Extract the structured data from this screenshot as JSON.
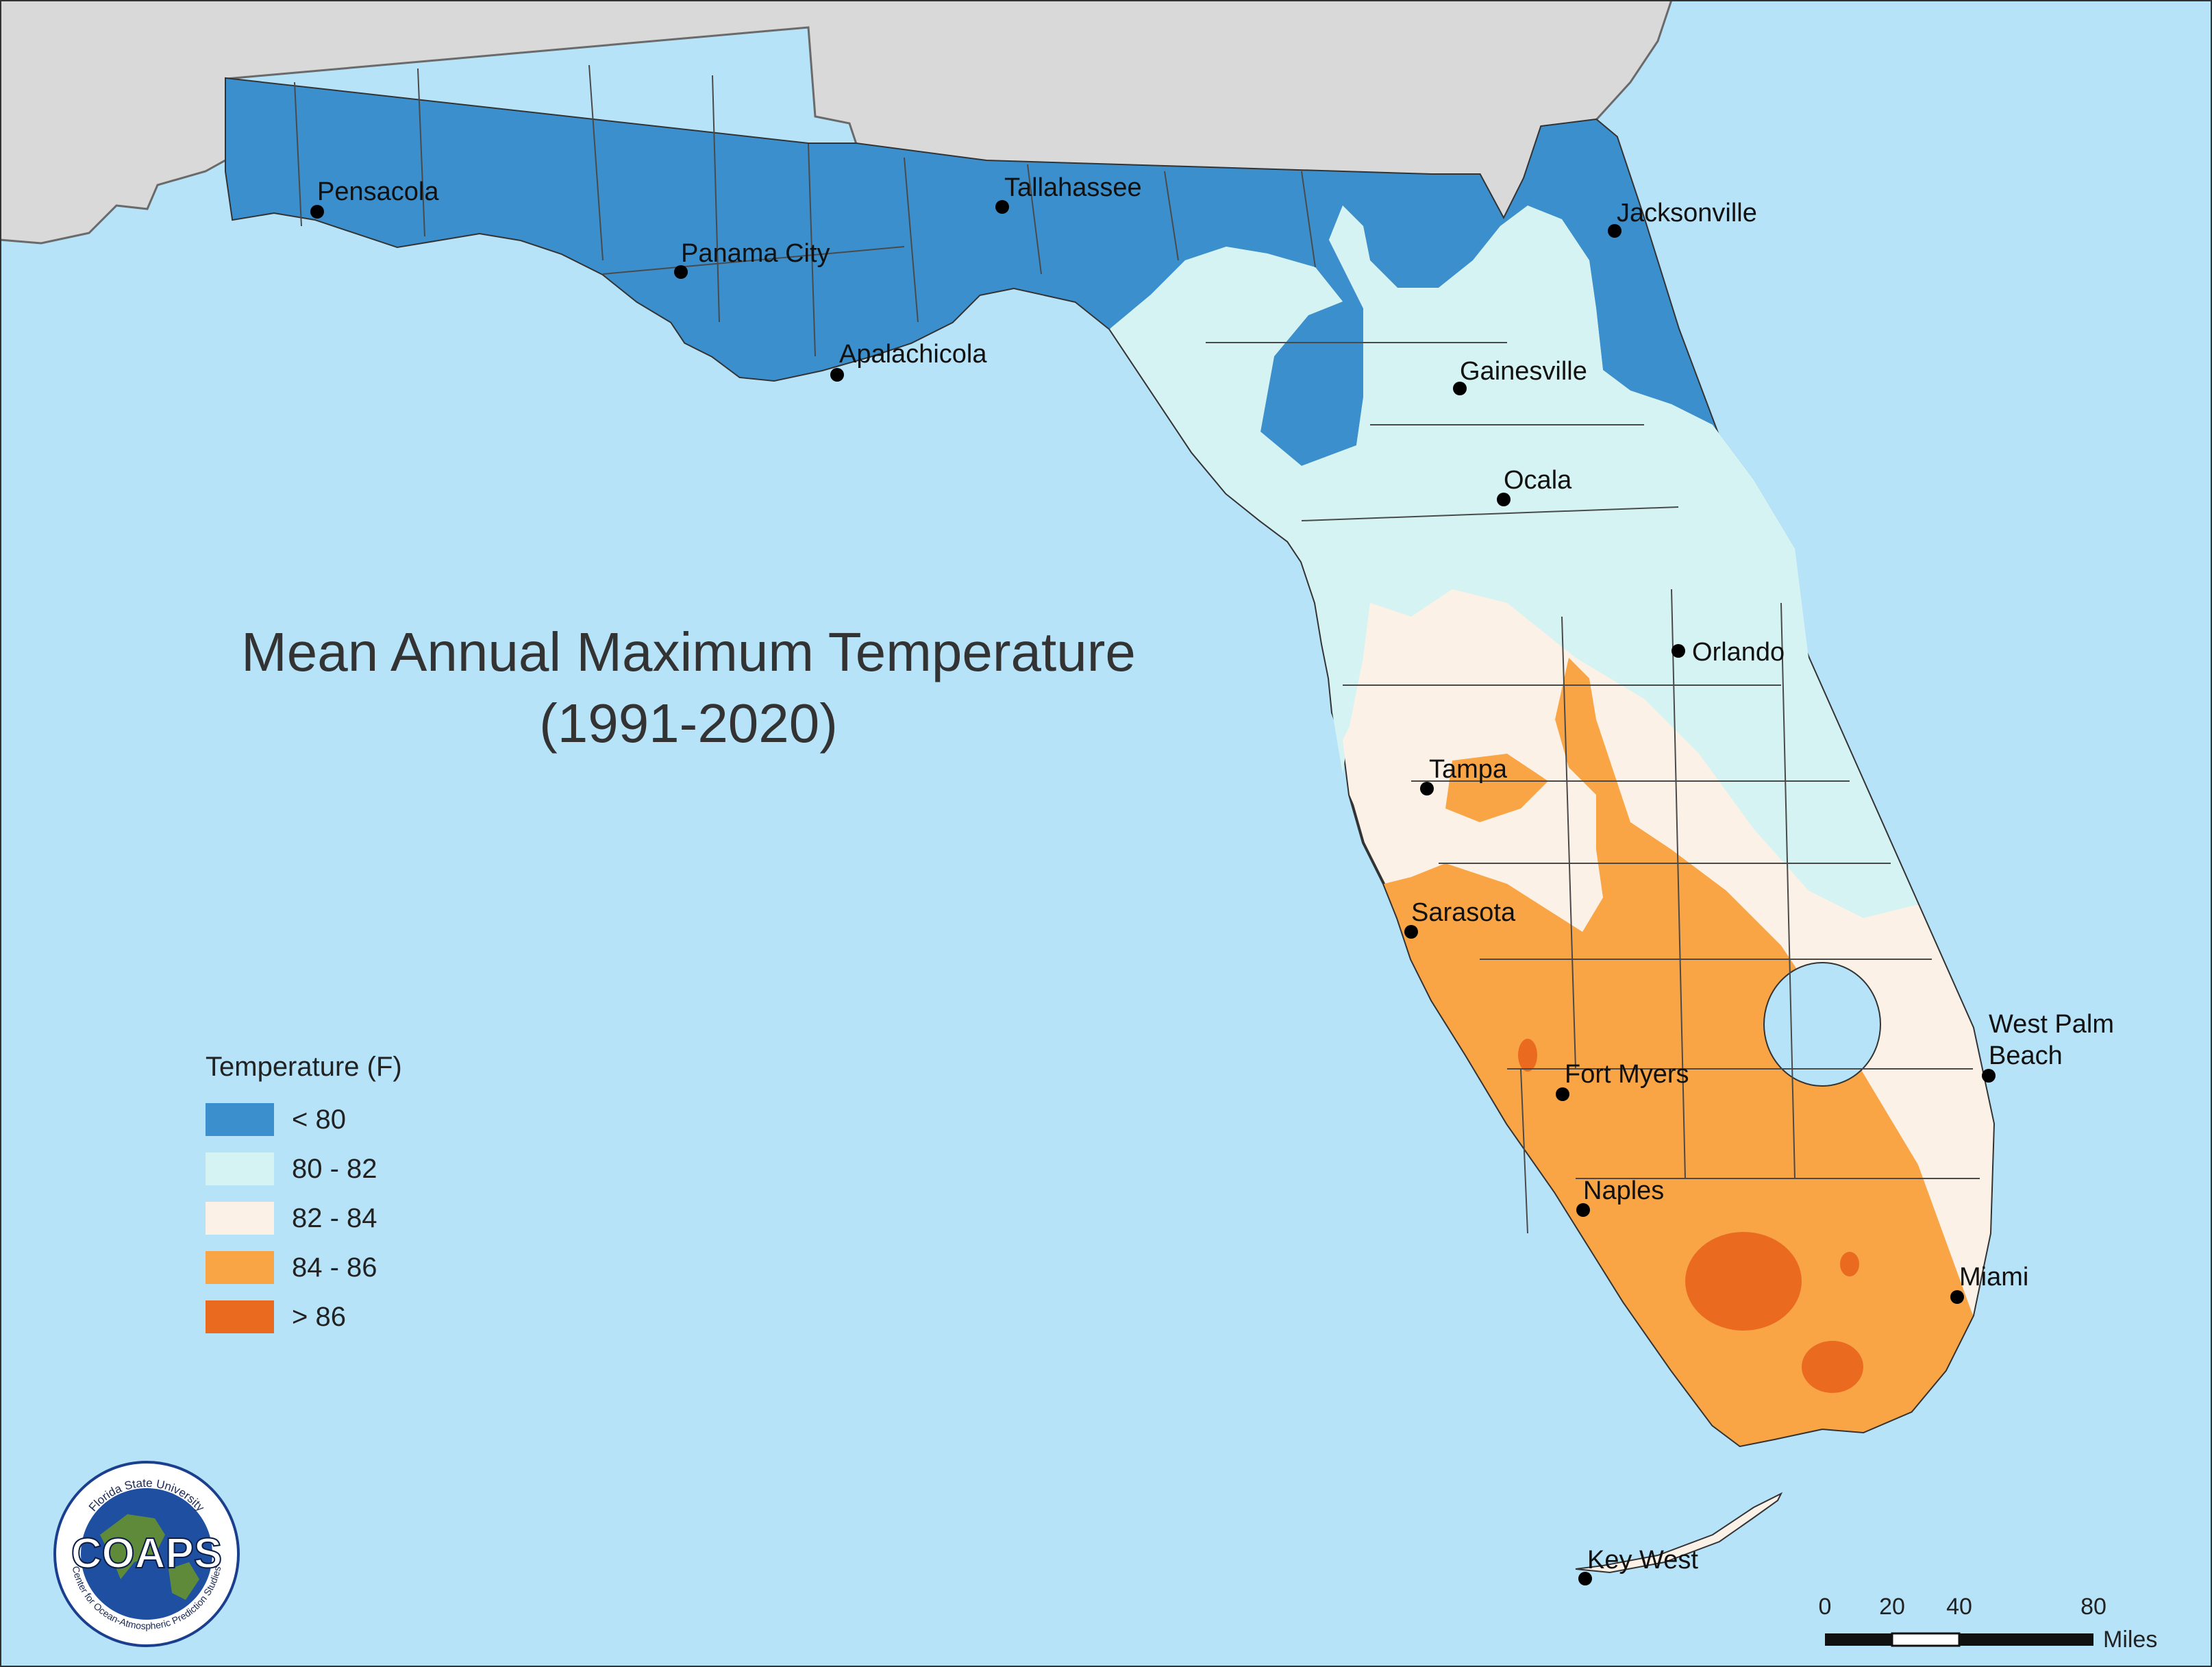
{
  "title": {
    "line1": "Mean Annual Maximum Temperature",
    "line2": "(1991-2020)"
  },
  "cities": [
    {
      "name": "Pensacola"
    },
    {
      "name": "Panama City"
    },
    {
      "name": "Tallahassee"
    },
    {
      "name": "Apalachicola"
    },
    {
      "name": "Jacksonville"
    },
    {
      "name": "Gainesville"
    },
    {
      "name": "Ocala"
    },
    {
      "name": "Orlando"
    },
    {
      "name": "Tampa"
    },
    {
      "name": "Sarasota"
    },
    {
      "name": "West Palm"
    },
    {
      "name": "Beach"
    },
    {
      "name": "Fort Myers"
    },
    {
      "name": "Naples"
    },
    {
      "name": "Miami"
    },
    {
      "name": "Key West"
    }
  ],
  "legend": {
    "title": "Temperature (F)",
    "items": [
      {
        "label": "< 80",
        "color": "#3a8fcc"
      },
      {
        "label": "80 - 82",
        "color": "#d5f3f2"
      },
      {
        "label": "82 - 84",
        "color": "#fcf1e6"
      },
      {
        "label": "84 - 86",
        "color": "#f9a546"
      },
      {
        "label": "> 86",
        "color": "#ea6a1f"
      }
    ]
  },
  "scale": {
    "ticks": [
      "0",
      "20",
      "40",
      "80"
    ],
    "unit": "Miles"
  },
  "logo": {
    "name": "COAPS",
    "top_text": "Florida State University",
    "bottom_text": "Center for Ocean-Atmospheric Prediction Studies"
  },
  "colors": {
    "water": "#b7e3f9",
    "land_outside": "#d9d9d9",
    "county_lines": "#4a4a4a"
  }
}
